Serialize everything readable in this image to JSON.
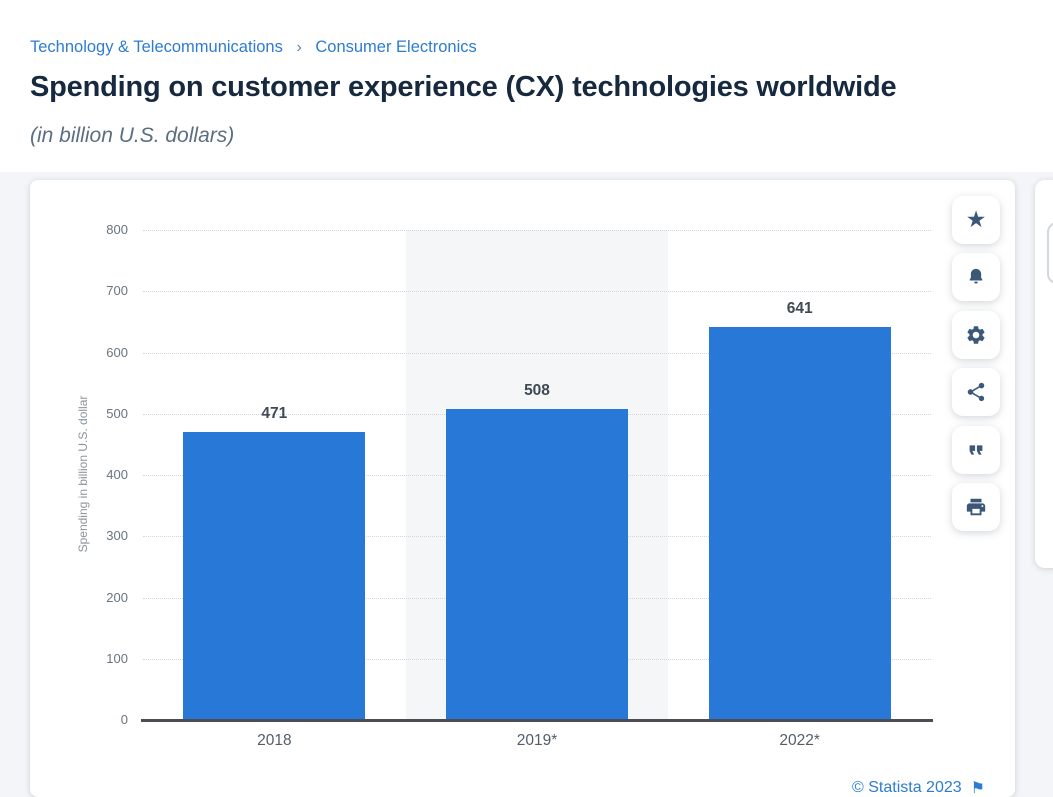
{
  "breadcrumb": {
    "category": "Technology & Telecommunications",
    "separator": "›",
    "subcategory": "Consumer Electronics"
  },
  "header": {
    "title": "Spending on customer experience (CX) technologies worldwide",
    "subtitle": "(in billion U.S. dollars)"
  },
  "chart_data": {
    "type": "bar",
    "title": "Spending on customer experience (CX) technologies worldwide",
    "categories": [
      "2018",
      "2019*",
      "2022*"
    ],
    "values": [
      471,
      508,
      641
    ],
    "xlabel": "",
    "ylabel": "Spending in billion U.S. dollar",
    "ylim": [
      0,
      800
    ],
    "yticks": [
      0,
      100,
      200,
      300,
      400,
      500,
      600,
      700,
      800
    ],
    "grid": "horizontal-dotted",
    "legend": "none",
    "bar_color": "#2878d8",
    "highlighted_category_index": 1,
    "source": "© Statista 2023"
  },
  "toolbar": {
    "buttons": [
      {
        "label": "favorite",
        "icon": "star-icon"
      },
      {
        "label": "set-alert",
        "icon": "bell-icon"
      },
      {
        "label": "settings",
        "icon": "gear-icon"
      },
      {
        "label": "share",
        "icon": "share-icon"
      },
      {
        "label": "cite",
        "icon": "quote-icon"
      },
      {
        "label": "print",
        "icon": "printer-icon"
      }
    ]
  },
  "footer": {
    "copyright": "© Statista 2023",
    "flag_icon": "⚑"
  }
}
